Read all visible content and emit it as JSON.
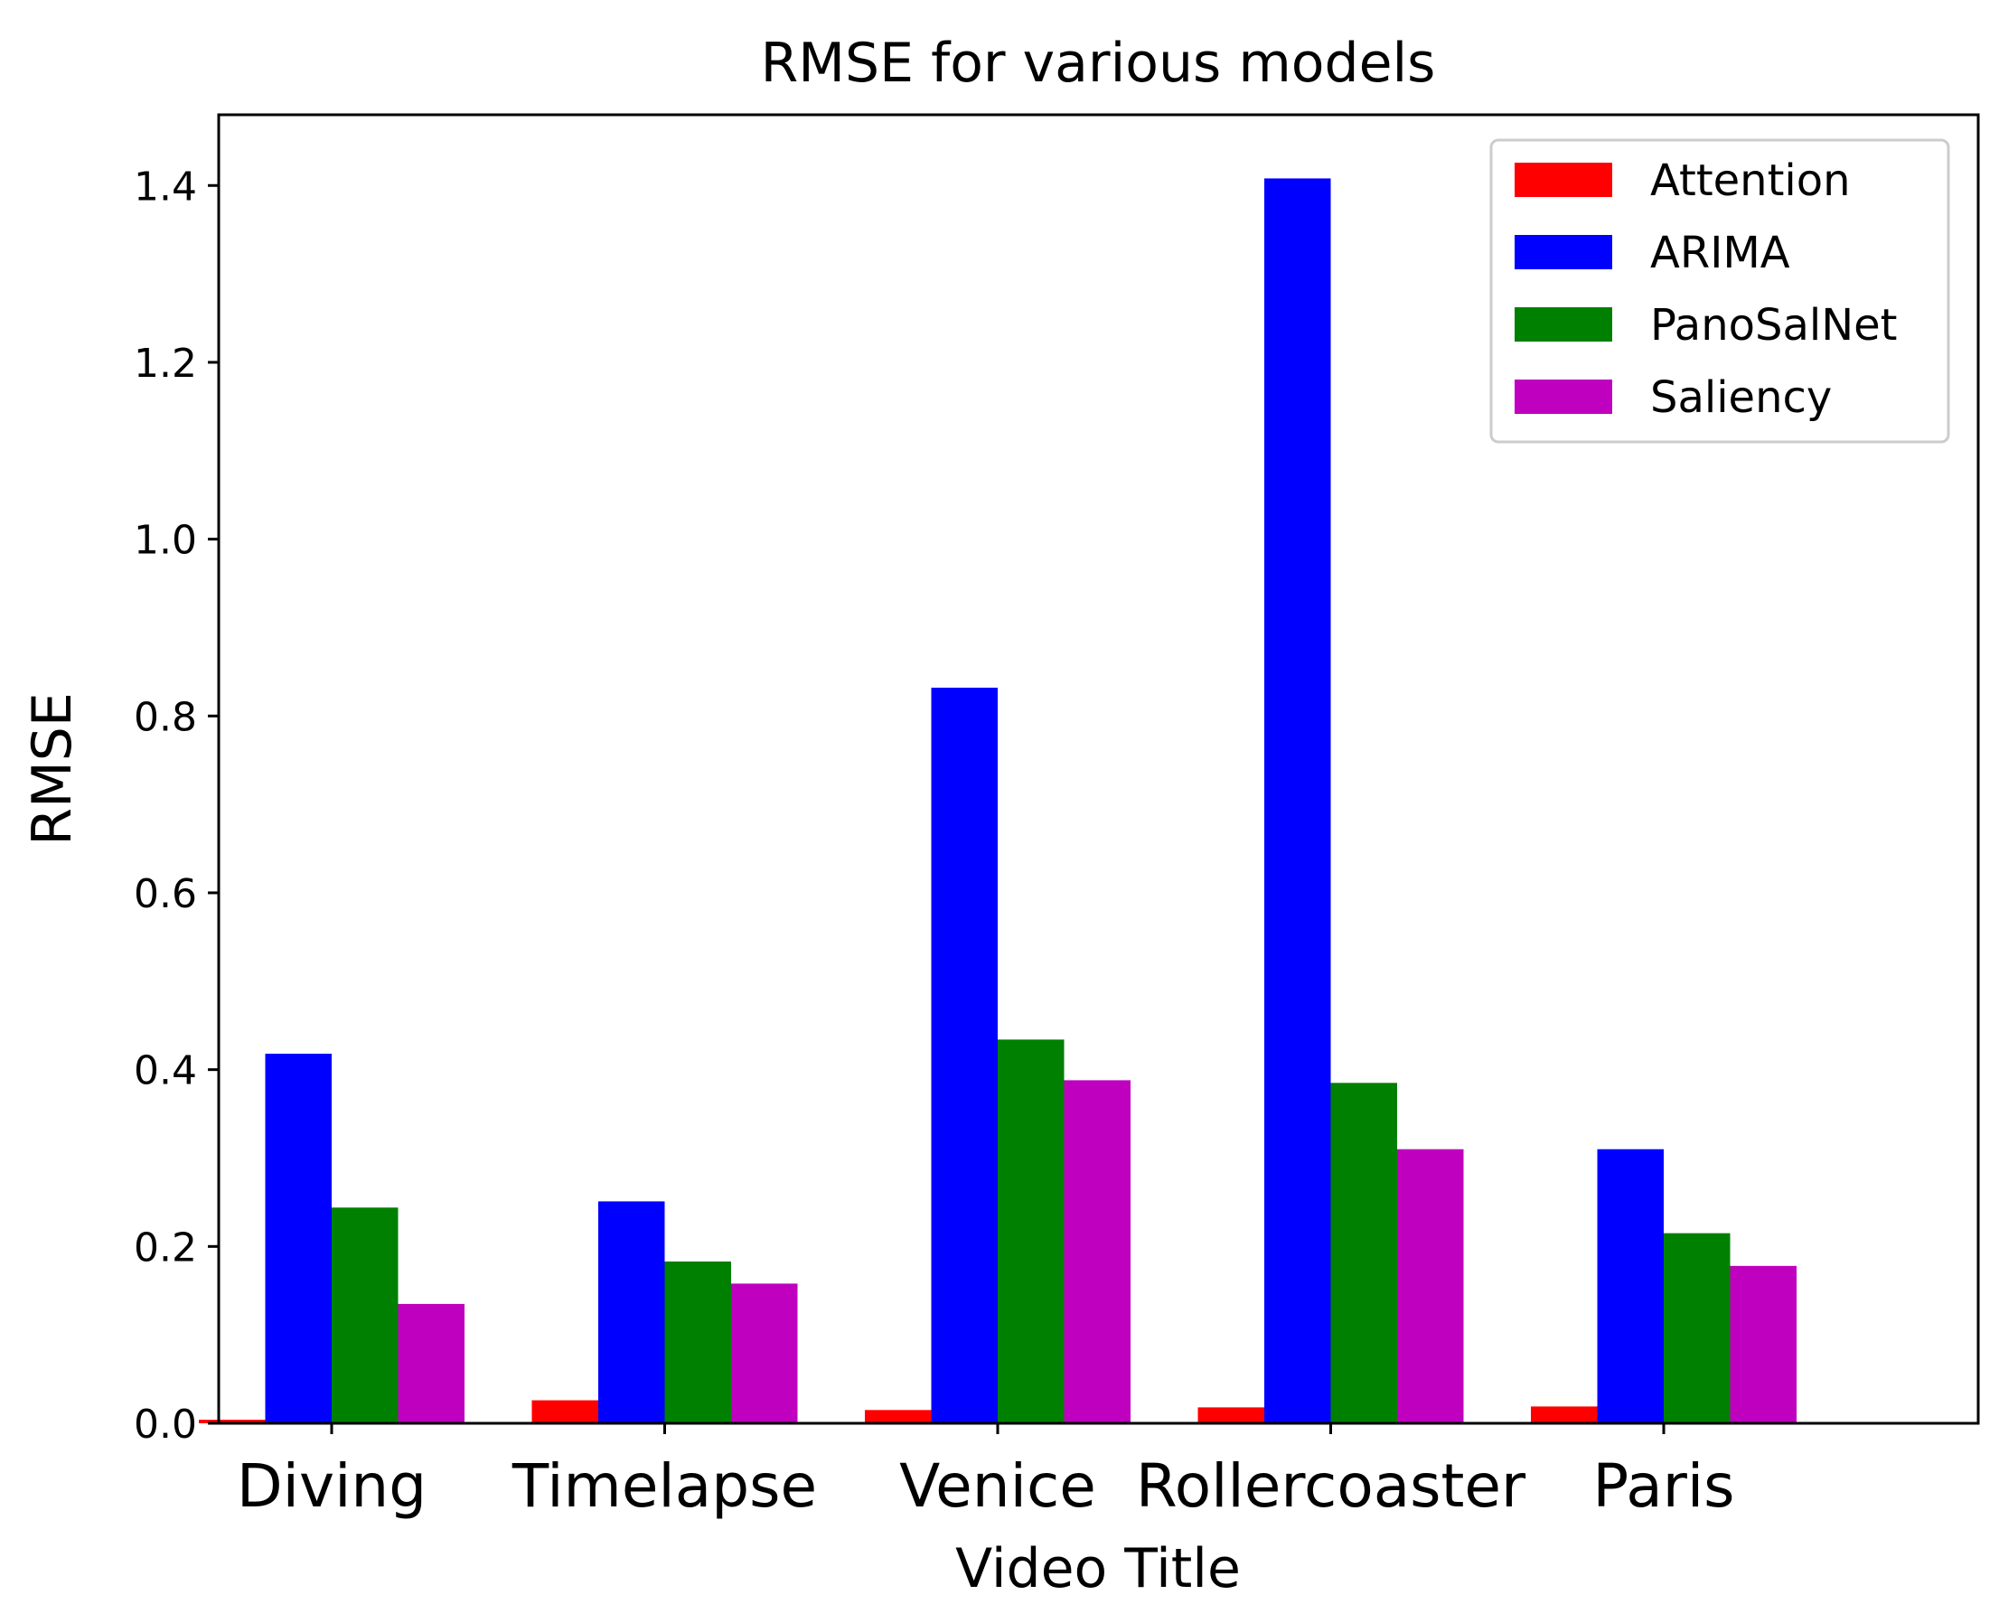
{
  "chart_data": {
    "type": "bar",
    "title": "RMSE for various models",
    "xlabel": "Video Title",
    "ylabel": "RMSE",
    "categories": [
      "Diving",
      "Timelapse",
      "Venice",
      "Rollercoaster",
      "Paris"
    ],
    "series": [
      {
        "name": "Attention",
        "color": "#ff0000",
        "values": [
          0.004,
          0.026,
          0.015,
          0.018,
          0.019
        ]
      },
      {
        "name": "ARIMA",
        "color": "#0000ff",
        "values": [
          0.418,
          0.251,
          0.832,
          1.408,
          0.31
        ]
      },
      {
        "name": "PanoSalNet",
        "color": "#008000",
        "values": [
          0.244,
          0.183,
          0.434,
          0.385,
          0.215
        ]
      },
      {
        "name": "Saliency",
        "color": "#bf00bf",
        "values": [
          0.135,
          0.158,
          0.388,
          0.31,
          0.178
        ]
      }
    ],
    "ylim": [
      0,
      1.48
    ],
    "yticks": [
      "0.0",
      "0.2",
      "0.4",
      "0.6",
      "0.8",
      "1.0",
      "1.2",
      "1.4"
    ],
    "grid": false,
    "legend_position": "top-right"
  }
}
